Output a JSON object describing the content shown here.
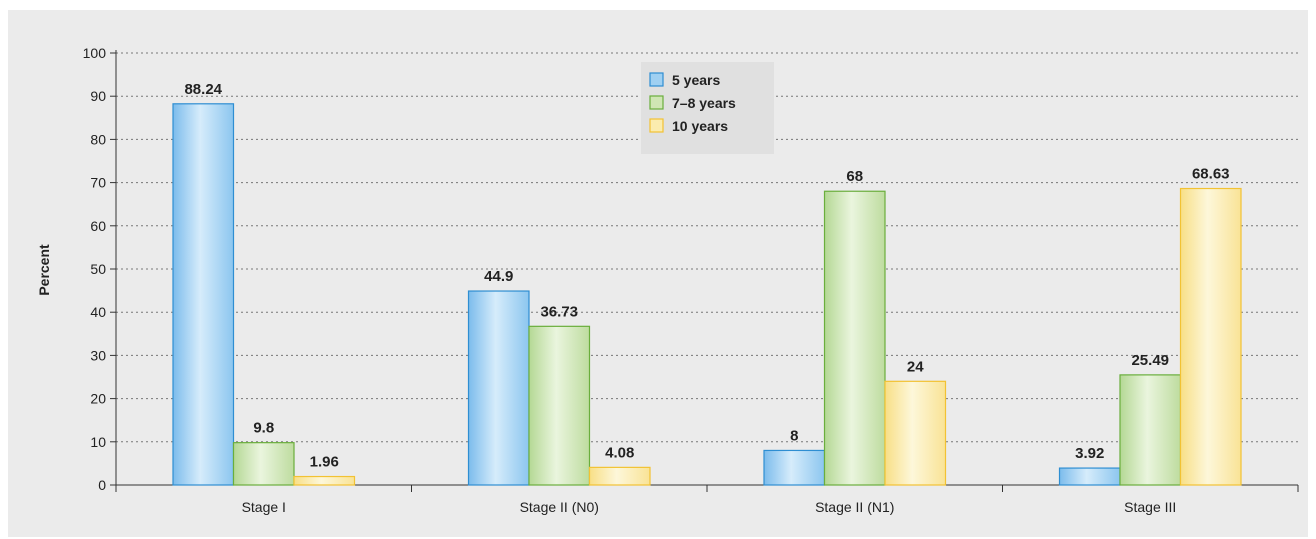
{
  "chart_data": {
    "type": "bar",
    "title": "",
    "xlabel": "",
    "ylabel": "Percent",
    "ylim": [
      0,
      100
    ],
    "yticks": [
      0,
      10,
      20,
      30,
      40,
      50,
      60,
      70,
      80,
      90,
      100
    ],
    "grid": true,
    "legend_position": "top-center",
    "categories": [
      "Stage I",
      "Stage II (N0)",
      "Stage II (N1)",
      "Stage III"
    ],
    "series": [
      {
        "name": "5 years",
        "values": [
          88.24,
          44.9,
          8,
          3.92
        ],
        "labels": [
          "88.24",
          "44.9",
          "8",
          "3.92"
        ],
        "color": "#9fd0f2",
        "stroke": "#2e8ed2"
      },
      {
        "name": "7–8 years",
        "values": [
          9.8,
          36.73,
          68,
          25.49
        ],
        "labels": [
          "9.8",
          "36.73",
          "68",
          "25.49"
        ],
        "color": "#cfe6b4",
        "stroke": "#6aae3c"
      },
      {
        "name": "10 years",
        "values": [
          1.96,
          4.08,
          24,
          68.63
        ],
        "labels": [
          "1.96",
          "4.08",
          "24",
          "68.63"
        ],
        "color": "#fbecae",
        "stroke": "#f2c233"
      }
    ]
  }
}
